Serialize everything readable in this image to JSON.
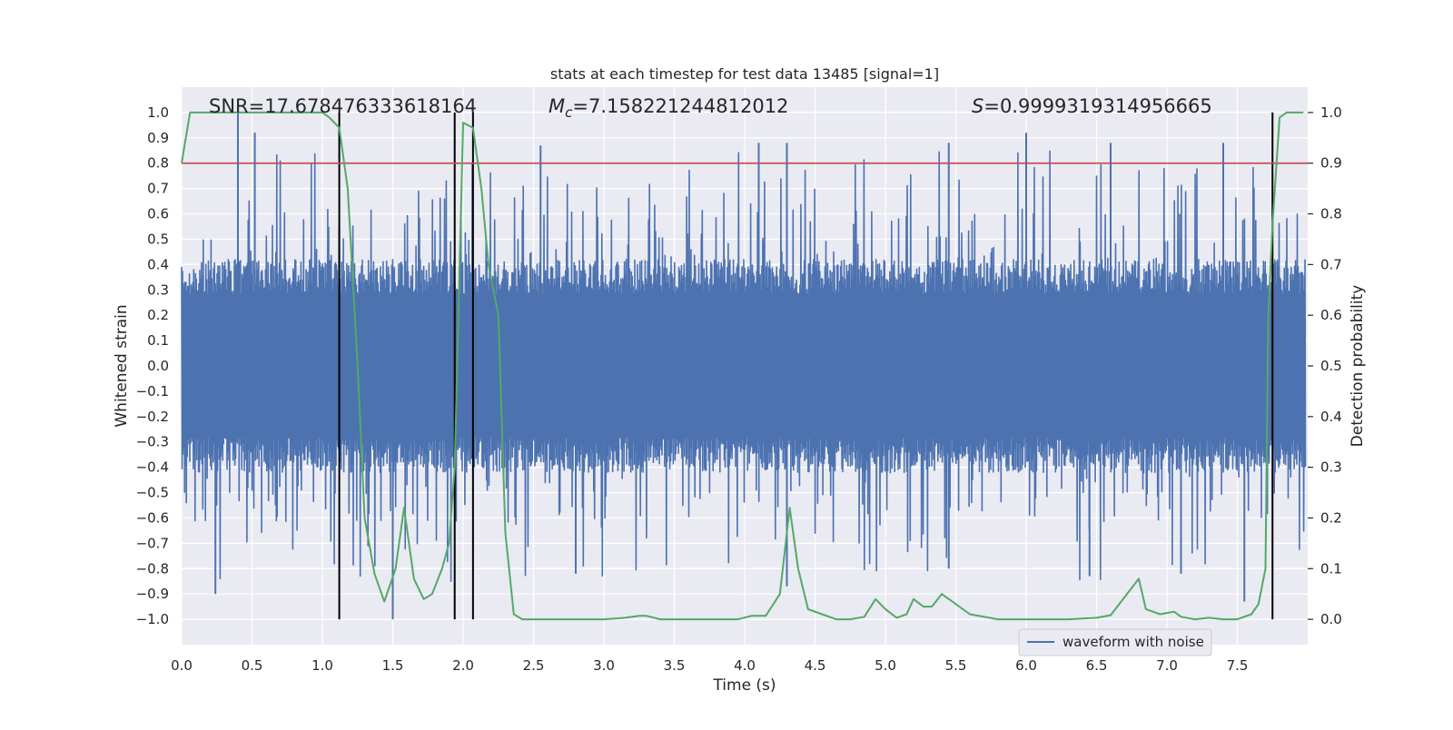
{
  "chart_data": {
    "type": "line",
    "title": "stats at each timestep for test data 13485 [signal=1]",
    "xlabel": "Time (s)",
    "ylabel": "Whitened strain",
    "y2label": "Detection probability",
    "xlim": [
      0.0,
      8.0
    ],
    "ylim": [
      -1.1,
      1.1
    ],
    "y2lim": [
      -0.05,
      1.05
    ],
    "x_ticks": [
      "0.0",
      "0.5",
      "1.0",
      "1.5",
      "2.0",
      "2.5",
      "3.0",
      "3.5",
      "4.0",
      "4.5",
      "5.0",
      "5.5",
      "6.0",
      "6.5",
      "7.0",
      "7.5"
    ],
    "y_ticks": [
      "1.0",
      "0.9",
      "0.8",
      "0.7",
      "0.6",
      "0.5",
      "0.4",
      "0.3",
      "0.2",
      "0.1",
      "0.0",
      "−0.1",
      "−0.2",
      "−0.3",
      "−0.4",
      "−0.5",
      "−0.6",
      "−0.7",
      "−0.8",
      "−0.9",
      "−1.0"
    ],
    "y2_ticks": [
      "1.0",
      "0.9",
      "0.8",
      "0.7",
      "0.6",
      "0.5",
      "0.4",
      "0.3",
      "0.2",
      "0.1",
      "0.0"
    ],
    "grid": true,
    "legend_position": "bottom-right",
    "annotations": {
      "snr": "SNR=17.678476333618164",
      "mc_symbol": "M",
      "mc_subscript": "c",
      "mc_value": "=7.158221244812012",
      "s_symbol": "S",
      "s_value": "=0.9999319314956665"
    },
    "threshold": {
      "y2": 0.9,
      "color": "#c44e52"
    },
    "vertical_lines": {
      "x": [
        1.12,
        1.94,
        2.07,
        7.75
      ],
      "color": "#000000"
    },
    "series": [
      {
        "name": "waveform with noise",
        "axis": "left",
        "color": "#4c72b0",
        "description_points_approx": {
          "sample_rate_hz": 2048,
          "band_abs_typical": 0.4,
          "spikes": [
            {
              "x": 0.4,
              "y": 1.0
            },
            {
              "x": 0.52,
              "y": 0.92
            },
            {
              "x": 0.24,
              "y": -0.9
            },
            {
              "x": 1.5,
              "y": -1.0
            },
            {
              "x": 4.3,
              "y": -0.87
            },
            {
              "x": 6.0,
              "y": 0.92
            },
            {
              "x": 5.45,
              "y": 0.88
            },
            {
              "x": 4.1,
              "y": 0.88
            },
            {
              "x": 4.3,
              "y": 0.88
            },
            {
              "x": 6.6,
              "y": 0.88
            },
            {
              "x": 7.4,
              "y": 0.88
            },
            {
              "x": 2.55,
              "y": 0.87
            },
            {
              "x": 6.45,
              "y": -0.83
            },
            {
              "x": 7.1,
              "y": -0.82
            },
            {
              "x": 2.8,
              "y": -0.82
            },
            {
              "x": 5.45,
              "y": -0.8
            },
            {
              "x": 7.55,
              "y": -0.93
            }
          ]
        }
      },
      {
        "name": "",
        "axis": "right",
        "color": "#55a868",
        "x": [
          0.0,
          0.06,
          0.2,
          0.4,
          0.6,
          0.8,
          1.0,
          1.05,
          1.12,
          1.18,
          1.25,
          1.3,
          1.37,
          1.44,
          1.52,
          1.58,
          1.65,
          1.72,
          1.78,
          1.85,
          1.9,
          1.94,
          2.0,
          2.07,
          2.13,
          2.18,
          2.25,
          2.3,
          2.36,
          2.42,
          2.5,
          2.7,
          3.0,
          3.15,
          3.25,
          3.3,
          3.4,
          3.6,
          3.8,
          3.95,
          4.05,
          4.15,
          4.25,
          4.32,
          4.38,
          4.45,
          4.55,
          4.65,
          4.75,
          4.85,
          4.93,
          5.0,
          5.08,
          5.15,
          5.2,
          5.27,
          5.33,
          5.4,
          5.5,
          5.6,
          5.8,
          6.0,
          6.3,
          6.5,
          6.6,
          6.8,
          6.85,
          6.95,
          7.05,
          7.1,
          7.2,
          7.3,
          7.4,
          7.5,
          7.6,
          7.65,
          7.7,
          7.72,
          7.75,
          7.8,
          7.85,
          7.9,
          7.97
        ],
        "y": [
          0.9,
          1.0,
          1.0,
          1.0,
          1.0,
          1.0,
          1.0,
          0.99,
          0.97,
          0.85,
          0.5,
          0.2,
          0.09,
          0.035,
          0.1,
          0.22,
          0.08,
          0.04,
          0.05,
          0.1,
          0.15,
          0.3,
          0.98,
          0.97,
          0.85,
          0.7,
          0.6,
          0.17,
          0.01,
          0.0,
          0.0,
          0.0,
          0.0,
          0.003,
          0.007,
          0.007,
          0.0,
          0.0,
          0.0,
          0.0,
          0.007,
          0.007,
          0.05,
          0.22,
          0.1,
          0.02,
          0.01,
          0.0,
          0.0,
          0.005,
          0.04,
          0.02,
          0.003,
          0.01,
          0.04,
          0.025,
          0.025,
          0.05,
          0.03,
          0.01,
          0.0,
          0.0,
          0.0,
          0.003,
          0.008,
          0.08,
          0.02,
          0.01,
          0.015,
          0.005,
          0.0,
          0.003,
          0.0,
          0.0,
          0.01,
          0.03,
          0.1,
          0.6,
          0.78,
          0.99,
          1.0,
          1.0,
          1.0
        ]
      }
    ]
  }
}
